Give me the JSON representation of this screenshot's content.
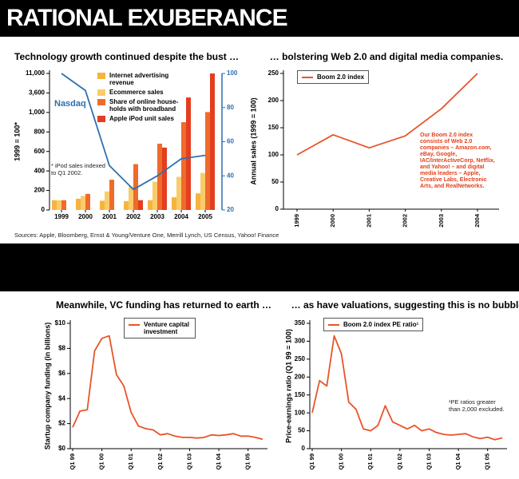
{
  "title": "RATIONAL EXUBERANCE",
  "sources": "Sources: Apple, Bloomberg, Ernst & Young/Venture One, Merrill Lynch, US Census, Yahoo! Finance",
  "chart_data": [
    {
      "type": "bar",
      "title": "Technology growth continued despite the bust …",
      "ylabel": "1999 = 100*",
      "categories": [
        "1999",
        "2000",
        "2001",
        "2002",
        "2003",
        "2004",
        "2005"
      ],
      "series": [
        {
          "name": "Internet advertising revenue",
          "color": "#f6b43e",
          "values": [
            100,
            115,
            95,
            90,
            100,
            130,
            170
          ]
        },
        {
          "name": "Ecommerce sales",
          "color": "#f9cc6a",
          "values": [
            100,
            145,
            190,
            240,
            290,
            340,
            380
          ]
        },
        {
          "name": "Share of online house-holds with broadband",
          "color": "#ef6b2b",
          "values": [
            100,
            165,
            310,
            470,
            680,
            900,
            1050
          ]
        },
        {
          "name": "Apple iPod unit sales",
          "color": "#e43d1f",
          "values": [
            null,
            null,
            null,
            100,
            640,
            3000,
            11000
          ]
        },
        {
          "name": "Nasdaq",
          "color": "#2e6fae",
          "axis": "y2",
          "values": [
            100,
            90,
            46,
            32,
            40,
            50,
            52
          ]
        }
      ],
      "yscale": "broken",
      "ylim": [
        0,
        11000
      ],
      "yticks": [
        0,
        200,
        400,
        600,
        800,
        {
          "value": 1000,
          "label": "1,000"
        },
        {
          "value": 3600,
          "label": "3,600"
        },
        {
          "value": 11000,
          "label": "11,000"
        }
      ],
      "y2lim": [
        20,
        100
      ],
      "y2ticks": [
        20,
        40,
        60,
        80,
        100
      ],
      "note": "* iPod sales indexed to Q1 2002."
    },
    {
      "type": "line",
      "title": "… bolstering Web 2.0 and digital media companies.",
      "ylabel": "Annual sales (1999 = 100)",
      "categories": [
        "1999",
        "2000",
        "2001",
        "2002",
        "2003",
        "2004"
      ],
      "series": [
        {
          "name": "Boom 2.0 index",
          "color": "#e8542a",
          "values": [
            100,
            137,
            113,
            135,
            185,
            250
          ]
        }
      ],
      "ylim": [
        0,
        250
      ],
      "yticks": [
        0,
        50,
        100,
        150,
        200,
        250
      ],
      "note": "Our Boom 2.0 index consists of Web 2.0 companies – Amazon.com, eBay, Google, IAC/InterActiveCorp, Netflix, and Yahoo! – and digital media leaders – Apple, Creative Labs, Electronic Arts, and RealNetworks."
    },
    {
      "type": "line",
      "title": "Meanwhile, VC funding has returned to earth …",
      "ylabel": "Startup company funding (in billions)",
      "categories": [
        "Q1 99",
        null,
        null,
        null,
        "Q1 00",
        null,
        null,
        null,
        "Q1 01",
        null,
        null,
        null,
        "Q1 02",
        null,
        null,
        null,
        "Q1 03",
        null,
        null,
        null,
        "Q1 04",
        null,
        null,
        null,
        "Q1 05",
        null,
        null
      ],
      "series": [
        {
          "name": "Venture capital investment",
          "color": "#e8542a",
          "values": [
            1.7,
            3.0,
            3.1,
            7.8,
            8.8,
            9.0,
            5.9,
            5.0,
            2.9,
            1.8,
            1.6,
            1.5,
            1.1,
            1.2,
            1.0,
            0.9,
            0.9,
            0.85,
            0.9,
            1.1,
            1.05,
            1.1,
            1.2,
            1.0,
            1.0,
            0.9,
            0.75
          ]
        }
      ],
      "ylim": [
        0,
        10
      ],
      "yticks": [
        {
          "value": 0,
          "label": "$0"
        },
        {
          "value": 2,
          "label": "$2"
        },
        {
          "value": 4,
          "label": "$4"
        },
        {
          "value": 6,
          "label": "$6"
        },
        {
          "value": 8,
          "label": "$8"
        },
        {
          "value": 10,
          "label": "$10"
        }
      ]
    },
    {
      "type": "line",
      "title": "… as have valuations, suggesting this is no bubble.",
      "ylabel": "Price-earnings ratio (Q1 99 = 100)",
      "categories": [
        "Q1 99",
        null,
        null,
        null,
        "Q1 00",
        null,
        null,
        null,
        "Q1 01",
        null,
        null,
        null,
        "Q1 02",
        null,
        null,
        null,
        "Q1 03",
        null,
        null,
        null,
        "Q1 04",
        null,
        null,
        null,
        "Q1 05",
        null,
        null
      ],
      "series": [
        {
          "name": "Boom 2.0 index PE ratio¹",
          "color": "#e8542a",
          "values": [
            100,
            190,
            175,
            315,
            265,
            130,
            110,
            55,
            50,
            65,
            120,
            75,
            65,
            55,
            65,
            50,
            55,
            45,
            40,
            38,
            40,
            42,
            33,
            28,
            32,
            25,
            30
          ]
        }
      ],
      "ylim": [
        0,
        350
      ],
      "yticks": [
        0,
        50,
        100,
        150,
        200,
        250,
        300,
        350
      ],
      "note": "¹PE ratios greater than 2,000 excluded."
    }
  ]
}
